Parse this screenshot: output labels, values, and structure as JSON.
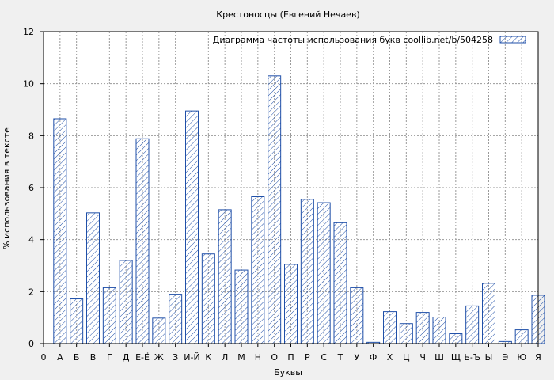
{
  "chart_data": {
    "type": "bar",
    "title": "Крестоносцы (Евгений Нечаев)",
    "xlabel": "Буквы",
    "ylabel": "% использования в тексте",
    "ylim": [
      0,
      12
    ],
    "yticks": [
      0,
      2,
      4,
      6,
      8,
      10,
      12
    ],
    "grid": true,
    "legend_position": "top-right",
    "x_tick_labels": [
      "0",
      "А",
      "Б",
      "В",
      "Г",
      "Д",
      "Е-Ё",
      "Ж",
      "З",
      "И-Й",
      "К",
      "Л",
      "М",
      "Н",
      "О",
      "П",
      "Р",
      "С",
      "Т",
      "У",
      "Ф",
      "Х",
      "Ц",
      "Ч",
      "Ш",
      "Щ",
      "Ь-Ъ",
      "Ы",
      "Э",
      "Ю",
      "Я"
    ],
    "categories": [
      "А",
      "Б",
      "В",
      "Г",
      "Д",
      "Е-Ё",
      "Ж",
      "З",
      "И-Й",
      "К",
      "Л",
      "М",
      "Н",
      "О",
      "П",
      "Р",
      "С",
      "Т",
      "У",
      "Ф",
      "Х",
      "Ц",
      "Ч",
      "Ш",
      "Щ",
      "Ь-Ъ",
      "Ы",
      "Э",
      "Ю",
      "Я"
    ],
    "series": [
      {
        "name": "Диаграмма частоты использования букв  coollib.net/b/504258",
        "color": "#1f4fa8",
        "values": [
          8.65,
          1.72,
          5.03,
          2.15,
          3.2,
          7.88,
          0.98,
          1.9,
          8.95,
          3.45,
          5.15,
          2.83,
          5.65,
          10.3,
          3.05,
          5.55,
          5.42,
          4.65,
          2.15,
          0.05,
          1.23,
          0.77,
          1.2,
          1.02,
          0.38,
          1.45,
          2.32,
          0.08,
          0.53,
          1.86
        ]
      }
    ]
  }
}
